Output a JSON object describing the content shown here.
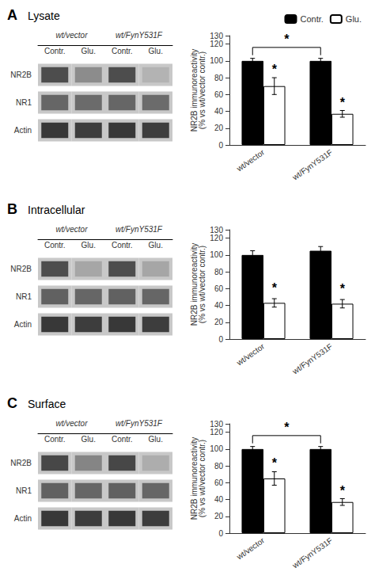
{
  "chart_data": [
    {
      "type": "heatmap",
      "title": "Lysate",
      "annotations": [
        "A"
      ],
      "group_labels": [
        "wt/vector",
        "wt/FynY531F"
      ],
      "categories": [
        "Contr.",
        "Glu.",
        "Contr.",
        "Glu."
      ],
      "rows": [
        "NR2B",
        "NR1",
        "Actin"
      ],
      "cells": [
        [
          0.3,
          0.55,
          0.3,
          0.7
        ],
        [
          0.4,
          0.42,
          0.4,
          0.42
        ],
        [
          0.22,
          0.24,
          0.22,
          0.24
        ]
      ]
    },
    {
      "type": "bar",
      "categories": [
        "wt/vector",
        "wt/FynY531F"
      ],
      "series": [
        {
          "name": "Contr.",
          "color": "#000000",
          "values": [
            100,
            100
          ],
          "errors": [
            3,
            3
          ]
        },
        {
          "name": "Glu.",
          "color": "#ffffff",
          "values": [
            70,
            37
          ],
          "errors": [
            10,
            4
          ]
        }
      ],
      "edge_color": "#000000",
      "ylabel": "NR2B immunoreactivity\n(% vs wt/vector contr.)",
      "ylim": [
        0,
        130
      ],
      "yticks": [
        0,
        20,
        40,
        60,
        80,
        100,
        120
      ],
      "grid": false,
      "legend": "upper right",
      "annotations": [
        {
          "text": "*",
          "category": "wt/vector",
          "series": "Glu.",
          "y": 82
        },
        {
          "text": "*",
          "category": "wt/FynY531F",
          "series": "Glu.",
          "y": 43
        }
      ],
      "bracket": {
        "from": "wt/vector",
        "to": "wt/FynY531F",
        "series": "Contr.",
        "y": 116,
        "text": "*",
        "text_y": 118
      }
    },
    {
      "type": "heatmap",
      "title": "Intracellular",
      "annotations": [
        "B"
      ],
      "group_labels": [
        "wt/vector",
        "wt/FynY531F"
      ],
      "categories": [
        "Contr.",
        "Glu.",
        "Contr.",
        "Glu."
      ],
      "rows": [
        "NR2B",
        "NR1",
        "Actin"
      ],
      "cells": [
        [
          0.3,
          0.65,
          0.3,
          0.65
        ],
        [
          0.38,
          0.4,
          0.38,
          0.4
        ],
        [
          0.22,
          0.24,
          0.22,
          0.24
        ]
      ]
    },
    {
      "type": "bar",
      "categories": [
        "wt/vector",
        "wt/FynY531F"
      ],
      "series": [
        {
          "name": "Contr.",
          "color": "#000000",
          "values": [
            100,
            105
          ],
          "errors": [
            5,
            5
          ]
        },
        {
          "name": "Glu.",
          "color": "#ffffff",
          "values": [
            43,
            42
          ],
          "errors": [
            5,
            5
          ]
        }
      ],
      "edge_color": "#000000",
      "ylabel": "NR2B immunoreactivity\n(% vs wt/vector contr.)",
      "ylim": [
        0,
        130
      ],
      "yticks": [
        0,
        20,
        40,
        60,
        80,
        100,
        120
      ],
      "grid": false,
      "annotations": [
        {
          "text": "*",
          "category": "wt/vector",
          "series": "Glu.",
          "y": 53
        },
        {
          "text": "*",
          "category": "wt/FynY531F",
          "series": "Glu.",
          "y": 52
        }
      ]
    },
    {
      "type": "heatmap",
      "title": "Surface",
      "annotations": [
        "C"
      ],
      "group_labels": [
        "wt/vector",
        "wt/FynY531F"
      ],
      "categories": [
        "Contr.",
        "Glu.",
        "Contr.",
        "Glu."
      ],
      "rows": [
        "NR2B",
        "NR1",
        "Actin"
      ],
      "cells": [
        [
          0.28,
          0.52,
          0.28,
          0.68
        ],
        [
          0.38,
          0.4,
          0.38,
          0.4
        ],
        [
          0.22,
          0.24,
          0.22,
          0.24
        ]
      ]
    },
    {
      "type": "bar",
      "categories": [
        "wt/vector",
        "wt/FynY531F"
      ],
      "series": [
        {
          "name": "Contr.",
          "color": "#000000",
          "values": [
            100,
            100
          ],
          "errors": [
            3,
            3
          ]
        },
        {
          "name": "Glu.",
          "color": "#ffffff",
          "values": [
            65,
            37
          ],
          "errors": [
            8,
            4
          ]
        }
      ],
      "edge_color": "#000000",
      "ylabel": "NR2B immunoreactivity\n(% vs wt/vector contr.)",
      "ylim": [
        0,
        130
      ],
      "yticks": [
        0,
        20,
        40,
        60,
        80,
        100,
        120
      ],
      "grid": false,
      "annotations": [
        {
          "text": "*",
          "category": "wt/vector",
          "series": "Glu.",
          "y": 76
        },
        {
          "text": "*",
          "category": "wt/FynY531F",
          "series": "Glu.",
          "y": 43
        }
      ],
      "bracket": {
        "from": "wt/vector",
        "to": "wt/FynY531F",
        "series": "Contr.",
        "y": 116,
        "text": "*",
        "text_y": 118
      }
    }
  ]
}
